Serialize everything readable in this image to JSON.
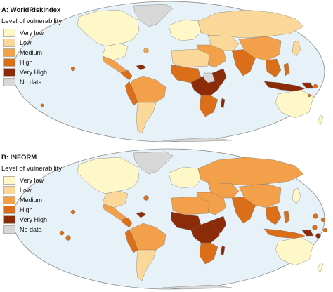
{
  "panels": [
    {
      "id": "A",
      "title": "A: WorldRiskIndex",
      "subtitle": "Level of vulnerability",
      "legend": [
        {
          "label": "Very low",
          "color": "#FEF8C8"
        },
        {
          "label": "Low",
          "color": "#FAD89A"
        },
        {
          "label": "Medium",
          "color": "#F3A04B"
        },
        {
          "label": "High",
          "color": "#DB6E18"
        },
        {
          "label": "Very High",
          "color": "#8C2B07"
        },
        {
          "label": "No data",
          "color": "#D7D7D7"
        }
      ]
    },
    {
      "id": "B",
      "title": "B: INFORM",
      "subtitle": "Level of vulnerability",
      "legend": [
        {
          "label": "Very low",
          "color": "#FEF8C8"
        },
        {
          "label": "Low",
          "color": "#FAD89A"
        },
        {
          "label": "Medium",
          "color": "#F3A04B"
        },
        {
          "label": "High",
          "color": "#DB6E18"
        },
        {
          "label": "Very High",
          "color": "#8C2B07"
        },
        {
          "label": "No data",
          "color": "#D7D7D7"
        }
      ]
    }
  ],
  "ocean_color": "#E6F1F8",
  "border_color": "#8a8a8a"
}
